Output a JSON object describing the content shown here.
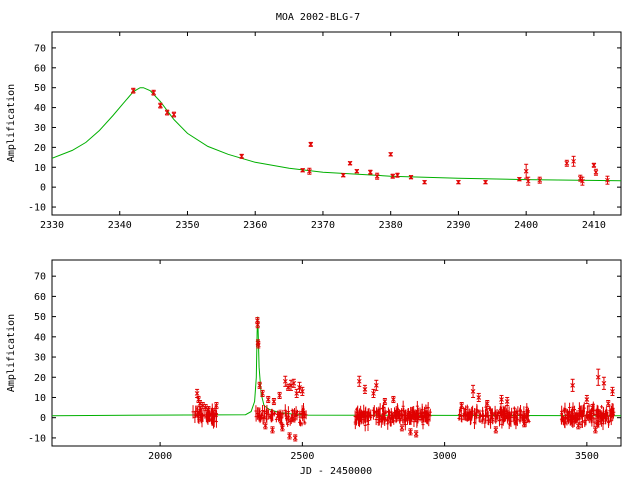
{
  "title": "MOA 2002-BLG-7",
  "chart_data": [
    {
      "type": "scatter",
      "ylabel": "Amplification",
      "xlabel": "",
      "xlim": [
        2330,
        2414
      ],
      "ylim": [
        -14,
        78
      ],
      "xticks": [
        2330,
        2340,
        2350,
        2360,
        2370,
        2380,
        2390,
        2400,
        2410
      ],
      "yticks": [
        -10,
        0,
        10,
        20,
        30,
        40,
        50,
        60,
        70
      ],
      "model": {
        "name": "model",
        "color": "#00b000",
        "x": [
          2330,
          2333,
          2335,
          2337,
          2339,
          2340.5,
          2342,
          2343,
          2343.5,
          2344.5,
          2346,
          2348,
          2350,
          2353,
          2356,
          2360,
          2365,
          2370,
          2380,
          2390,
          2400,
          2414
        ],
        "y": [
          14.5,
          18.5,
          22.5,
          28.5,
          36,
          42,
          48,
          50,
          50,
          48.5,
          43,
          34,
          27,
          20.5,
          16.5,
          12.5,
          9.5,
          7.5,
          5.5,
          4.5,
          3.8,
          3.2
        ]
      },
      "series": [
        {
          "name": "data",
          "color": "#e00000",
          "x": [
            2342,
            2345,
            2346,
            2347,
            2348,
            2358,
            2367,
            2368,
            2368.2,
            2373,
            2374,
            2375,
            2377,
            2378,
            2380,
            2380.3,
            2381,
            2383,
            2385,
            2390,
            2394,
            2399,
            2400,
            2400.3,
            2402,
            2406,
            2407,
            2408,
            2408.3,
            2410,
            2410.3,
            2412
          ],
          "y": [
            48.5,
            47.5,
            41,
            37.5,
            36.5,
            15.5,
            8.5,
            8,
            21.5,
            6,
            12,
            8,
            7.5,
            5.5,
            16.5,
            5.5,
            6,
            5,
            2.5,
            2.5,
            2.5,
            4,
            8,
            3,
            3.5,
            12,
            13,
            4.5,
            3,
            11,
            7.5,
            3.5
          ],
          "err": [
            1.2,
            1.2,
            1.2,
            1.2,
            1.2,
            1.0,
            0.8,
            1.5,
            1.0,
            0.8,
            0.8,
            0.8,
            1.0,
            1.5,
            0.8,
            1.0,
            1.0,
            0.8,
            0.8,
            0.8,
            0.8,
            0.8,
            3.5,
            2.0,
            1.5,
            1.5,
            2.5,
            1.5,
            2.0,
            1.0,
            1.5,
            2.0
          ]
        }
      ]
    },
    {
      "type": "scatter",
      "ylabel": "Amplification",
      "xlabel": "JD - 2450000",
      "xlim": [
        1620,
        3620
      ],
      "ylim": [
        -14,
        78
      ],
      "xticks": [
        2000,
        2500,
        3000,
        3500
      ],
      "yticks": [
        -10,
        0,
        10,
        20,
        30,
        40,
        50,
        60,
        70
      ],
      "baseline": 1,
      "model": {
        "name": "model",
        "color": "#00b000",
        "x": [
          1620,
          2300,
          2320,
          2332,
          2338,
          2341,
          2343,
          2345,
          2348,
          2355,
          2365,
          2385,
          2420,
          2500,
          3620
        ],
        "y": [
          1,
          1.5,
          3,
          8,
          20,
          42,
          50,
          40,
          25,
          12,
          6,
          4,
          2.5,
          1.3,
          1
        ]
      },
      "clusters": [
        {
          "x_from": 2115,
          "x_to": 2200,
          "spread": 3.5,
          "count": 60
        },
        {
          "x_from": 2335,
          "x_to": 2520,
          "spread": 4,
          "count": 90
        },
        {
          "x_from": 2685,
          "x_to": 2950,
          "spread": 4,
          "count": 220
        },
        {
          "x_from": 3050,
          "x_to": 3300,
          "spread": 4,
          "count": 170
        },
        {
          "x_from": 3410,
          "x_to": 3595,
          "spread": 4,
          "count": 160
        }
      ],
      "series": [
        {
          "name": "data",
          "color": "#e00000",
          "x": [
            2130,
            2135,
            2140,
            2150,
            2160,
            2170,
            2185,
            2198,
            2342,
            2343,
            2344,
            2345,
            2350,
            2360,
            2380,
            2400,
            2420,
            2440,
            2450,
            2460,
            2470,
            2480,
            2490,
            2500,
            2370,
            2430,
            2395,
            2455,
            2475,
            2700,
            2760,
            2790,
            2820,
            2850,
            2880,
            2900,
            2720,
            2750,
            3100,
            3120,
            3150,
            3200,
            3220,
            3250,
            3280,
            3060,
            3180,
            3450,
            3500,
            3520,
            3540,
            3560,
            3590,
            3470,
            3530,
            3575
          ],
          "y": [
            12,
            9,
            7,
            6,
            5,
            4,
            3,
            6,
            48,
            46,
            37,
            36,
            16,
            12,
            9,
            8,
            11,
            18,
            15,
            16,
            17,
            12,
            15,
            13,
            -4,
            -5,
            -6,
            -9,
            -10,
            18,
            16,
            8,
            9,
            -5,
            -7,
            -8,
            14,
            12,
            13,
            10,
            7,
            9,
            8,
            -2,
            -3,
            6,
            -6,
            16,
            9,
            5,
            20,
            17,
            13,
            -4,
            -6,
            7
          ],
          "err": [
            2,
            1.5,
            1.5,
            1.5,
            1.5,
            1.5,
            1.5,
            1.5,
            1.5,
            1.5,
            1.5,
            1.5,
            1.5,
            1.5,
            1.5,
            1.5,
            1.5,
            2.5,
            1.5,
            2.5,
            2,
            2,
            2.5,
            2,
            1.5,
            1.5,
            1.5,
            1.5,
            1.5,
            2.5,
            2.5,
            1.5,
            1.5,
            1.5,
            1.5,
            1.5,
            2,
            2,
            3,
            2,
            1.5,
            2,
            2,
            1.5,
            1.5,
            1.5,
            1.5,
            3,
            2,
            1.5,
            4,
            3,
            2,
            1.5,
            1.5,
            1.5
          ]
        }
      ]
    }
  ]
}
